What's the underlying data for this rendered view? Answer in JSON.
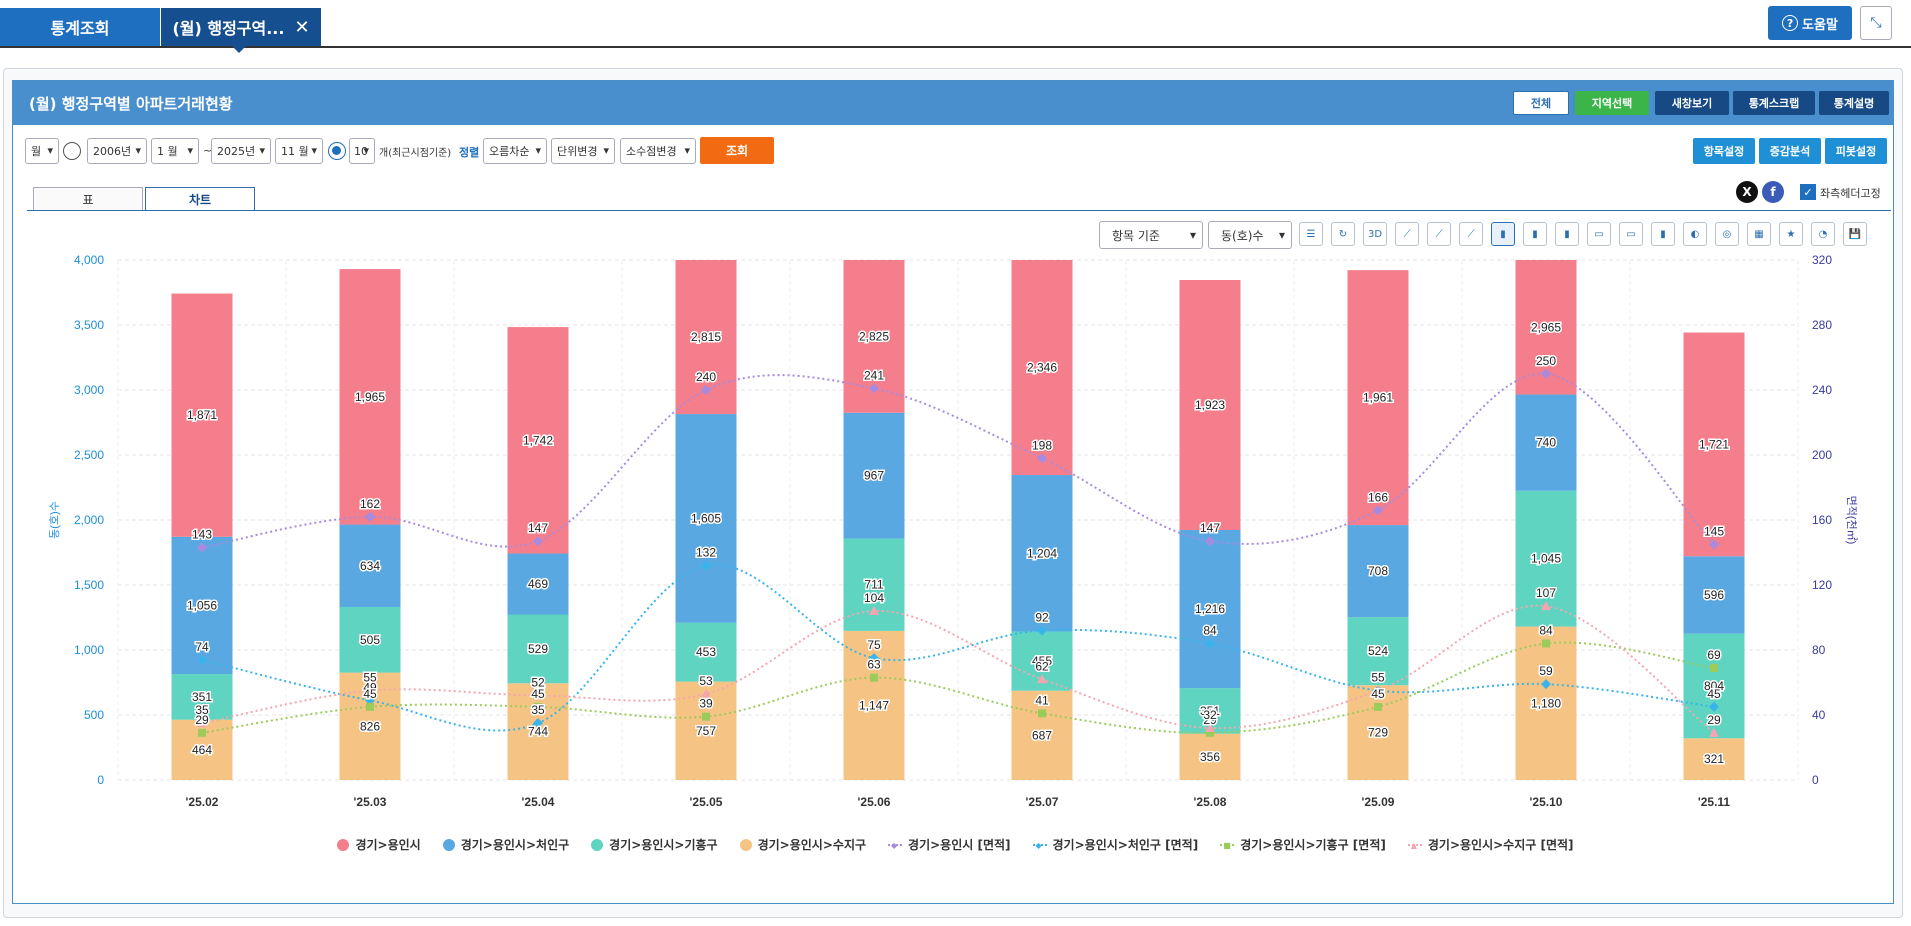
{
  "top_tabs": {
    "stats": "통계조회",
    "active": "(월) 행정구역...",
    "close": "✕"
  },
  "help": {
    "label": "도움말",
    "icon": "?"
  },
  "collapse_icon": "⤡",
  "panel": {
    "title": "(월) 행정구역별 아파트거래현황",
    "buttons": {
      "all": "전체",
      "region": "지역선택",
      "new_window": "새창보기",
      "scrap": "통계스크랩",
      "desc": "통계설명"
    }
  },
  "filters": {
    "period": "월",
    "start_year": "2006년",
    "start_month": "1 월",
    "tilde": "~",
    "end_year": "2025년",
    "end_month": "11 월",
    "recent_count": "10",
    "recent_label": "개(최근시점기준)",
    "sort_label": "정렬",
    "sort": "오름차순",
    "unit": "단위변경",
    "decimal": "소수점변경",
    "search": "조회",
    "item_settings": "항목설정",
    "change_analysis": "증감분석",
    "pivot": "피봇설정"
  },
  "subtabs": {
    "table": "표",
    "chart": "차트"
  },
  "share": {
    "x": "X",
    "facebook": "f",
    "fix_header": "좌측헤더고정",
    "check": "✓"
  },
  "chart_toolbar": {
    "basis": "항목 기준",
    "measure": "동(호)수",
    "tools": [
      "☰",
      "↻",
      "3D",
      "⟋",
      "⟋",
      "⟋",
      "▮",
      "▮",
      "▮",
      "▭",
      "▭",
      "▮",
      "◐",
      "◎",
      "▦",
      "★",
      "◔",
      "💾"
    ]
  },
  "chart_data": {
    "type": "bar",
    "stacked": true,
    "categories": [
      "'25.02",
      "'25.03",
      "'25.04",
      "'25.05",
      "'25.06",
      "'25.07",
      "'25.08",
      "'25.09",
      "'25.10",
      "'25.11"
    ],
    "ylabel": "동(호)수",
    "y2label": "면적(천㎡)",
    "ylim": [
      0,
      4000
    ],
    "y2lim": [
      0,
      320
    ],
    "yticks": [
      "0",
      "500",
      "1,000",
      "1,500",
      "2,000",
      "2,500",
      "3,000",
      "3,500",
      "4,000"
    ],
    "y2ticks": [
      "0",
      "40",
      "80",
      "120",
      "160",
      "200",
      "240",
      "280",
      "320"
    ],
    "bar_series": [
      {
        "name": "경기>용인시>수지구",
        "color": "#f5c484",
        "values": [
          464,
          826,
          744,
          757,
          1147,
          687,
          356,
          729,
          1180,
          321
        ]
      },
      {
        "name": "경기>용인시>기흥구",
        "color": "#5fd4c0",
        "values": [
          351,
          505,
          529,
          453,
          711,
          455,
          351,
          524,
          1045,
          804
        ]
      },
      {
        "name": "경기>용인시>처인구",
        "color": "#5aa8e2",
        "values": [
          1056,
          634,
          469,
          1605,
          967,
          1204,
          1216,
          708,
          740,
          596
        ]
      },
      {
        "name": "경기>용인시",
        "color": "#f47e8c",
        "values": [
          1871,
          1965,
          1742,
          2815,
          2825,
          2346,
          1923,
          1961,
          2965,
          1721
        ]
      }
    ],
    "line_series": [
      {
        "name": "경기>용인시 [면적]",
        "color": "#a78be0",
        "marker": "◆",
        "values": [
          143,
          162,
          147,
          240,
          241,
          198,
          147,
          166,
          250,
          145
        ]
      },
      {
        "name": "경기>용인시>처인구 [면적]",
        "color": "#39b4ea",
        "marker": "◆",
        "values": [
          74,
          49,
          35,
          132,
          75,
          92,
          84,
          55,
          59,
          45
        ]
      },
      {
        "name": "경기>용인시>기흥구 [면적]",
        "color": "#9ccb5c",
        "marker": "■",
        "values": [
          29,
          45,
          45,
          39,
          63,
          41,
          29,
          45,
          84,
          69
        ]
      },
      {
        "name": "경기>용인시>수지구 [면적]",
        "color": "#f4a6b0",
        "marker": "▲",
        "values": [
          35,
          55,
          52,
          53,
          104,
          62,
          32,
          55,
          107,
          29
        ]
      }
    ],
    "legend_order": [
      "경기>용인시",
      "경기>용인시>처인구",
      "경기>용인시>기흥구",
      "경기>용인시>수지구",
      "경기>용인시 [면적]",
      "경기>용인시>처인구 [면적]",
      "경기>용인시>기흥구 [면적]",
      "경기>용인시>수지구 [면적]"
    ]
  }
}
